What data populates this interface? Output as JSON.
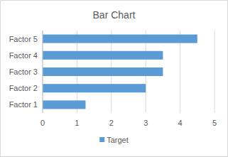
{
  "chart_data": {
    "type": "bar",
    "title": "Bar Chart",
    "orientation": "horizontal",
    "categories": [
      "Factor 1",
      "Factor 2",
      "Factor 3",
      "Factor 4",
      "Factor 5"
    ],
    "series": [
      {
        "name": "Target",
        "color": "#5b9bd5",
        "values": [
          1.25,
          3,
          3.5,
          3.5,
          4.5
        ]
      }
    ],
    "xlim": [
      0,
      5
    ],
    "xticks": [
      0,
      1,
      2,
      3,
      4,
      5
    ],
    "grid": true,
    "legend": "bottom"
  }
}
